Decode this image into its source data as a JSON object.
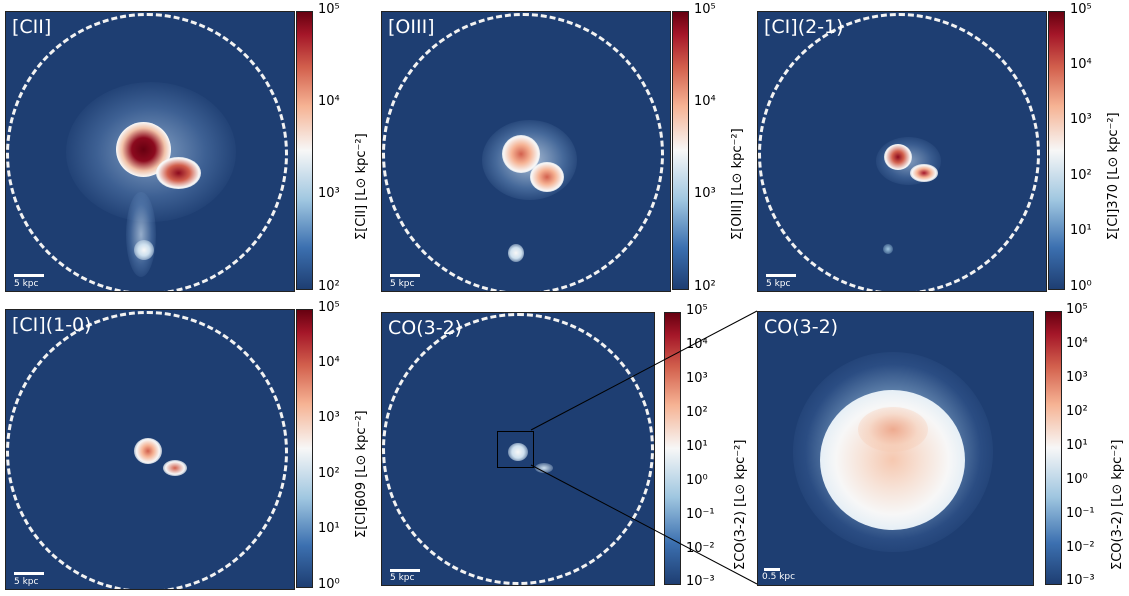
{
  "panels": [
    {
      "label": "[CII]",
      "scale_label": "5 kpc",
      "colorbar": {
        "ticks": [
          "10⁵",
          "10⁴",
          "10³",
          "10²"
        ],
        "title": "Σ[CII] [L⊙ kpc⁻²]"
      }
    },
    {
      "label": "[OIII]",
      "scale_label": "5 kpc",
      "colorbar": {
        "ticks": [
          "10⁵",
          "10⁴",
          "10³",
          "10²"
        ],
        "title": "Σ[OIII] [L⊙ kpc⁻²]"
      }
    },
    {
      "label": "[CI](2-1)",
      "scale_label": "5 kpc",
      "colorbar": {
        "ticks": [
          "10⁵",
          "10⁴",
          "10³",
          "10²",
          "10¹",
          "10⁰"
        ],
        "title": "Σ[CI]370 [L⊙ kpc⁻²]"
      }
    },
    {
      "label": "[CI](1-0)",
      "scale_label": "5 kpc",
      "colorbar": {
        "ticks": [
          "10⁵",
          "10⁴",
          "10³",
          "10²",
          "10¹",
          "10⁰"
        ],
        "title": "Σ[CI]609 [L⊙ kpc⁻²]"
      }
    },
    {
      "label": "CO(3-2)",
      "scale_label": "5 kpc",
      "colorbar": {
        "ticks": [
          "10⁵",
          "10⁴",
          "10³",
          "10²",
          "10¹",
          "10⁰",
          "10⁻¹",
          "10⁻²",
          "10⁻³"
        ],
        "title": "ΣCO(3-2) [L⊙ kpc⁻²]"
      }
    },
    {
      "label": "CO(3-2)",
      "scale_label": "0.5 kpc",
      "colorbar": {
        "ticks": [
          "10⁵",
          "10⁴",
          "10³",
          "10²",
          "10¹",
          "10⁰",
          "10⁻¹",
          "10⁻²",
          "10⁻³"
        ],
        "title": "ΣCO(3-2) [L⊙ kpc⁻²]"
      }
    }
  ]
}
